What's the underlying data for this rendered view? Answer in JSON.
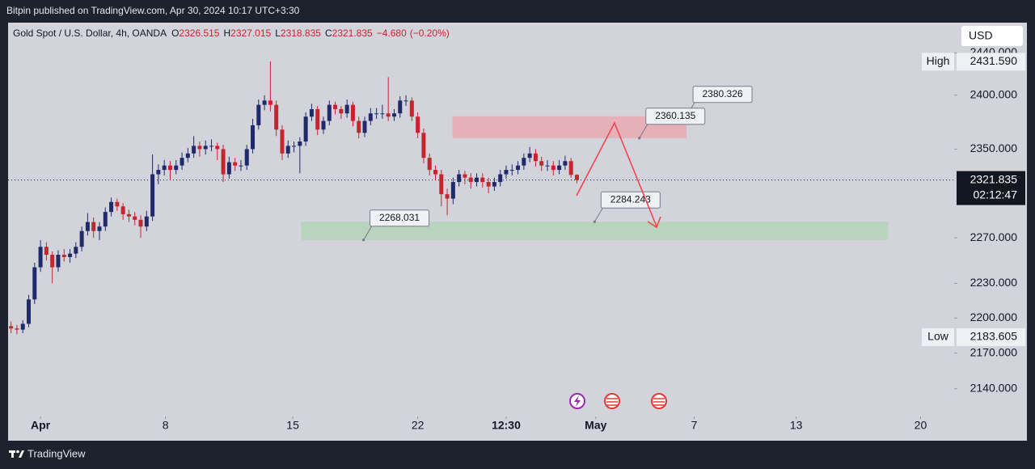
{
  "header": {
    "text": "Bitpin published on TradingView.com, Apr 30, 2024 10:17 UTC+3:30"
  },
  "footer": {
    "brand": "TradingView"
  },
  "currency_button": "USD",
  "chart_data": {
    "type": "candlestick",
    "title": "Gold Spot / U.S. Dollar, 4h, OANDA",
    "legend_ohlc": [
      {
        "label": "O",
        "value": 2326.515
      },
      {
        "label": "H",
        "value": 2327.015
      },
      {
        "label": "L",
        "value": 2318.835
      },
      {
        "label": "C",
        "value": 2321.835
      }
    ],
    "change": {
      "value": -4.68,
      "label": "−4.680"
    },
    "change_pct": {
      "value": -0.2,
      "label": "(−0.20%)"
    },
    "up_color": "#1f2a6b",
    "down_color": "#c4252f",
    "log_scale": true,
    "ylim": [
      2117,
      2469
    ],
    "yticks": [
      {
        "value": 2440,
        "label": "2440.000"
      },
      {
        "value": 2400,
        "label": "2400.000"
      },
      {
        "value": 2350,
        "label": "2350.000"
      },
      {
        "value": 2270,
        "label": "2270.000"
      },
      {
        "value": 2230,
        "label": "2230.000"
      },
      {
        "value": 2200,
        "label": "2200.000"
      },
      {
        "value": 2170,
        "label": "2170.000"
      },
      {
        "value": 2140,
        "label": "2140.000"
      }
    ],
    "xlim": [
      -0.5,
      160
    ],
    "xticks": [
      {
        "value": 5,
        "label": "Apr"
      },
      {
        "value": 26.2,
        "label": "8"
      },
      {
        "value": 47.8,
        "label": "15"
      },
      {
        "value": 69,
        "label": "22"
      },
      {
        "value": 84,
        "label": "12:30"
      },
      {
        "value": 99.2,
        "label": "May"
      },
      {
        "value": 115.9,
        "label": "7"
      },
      {
        "value": 133.2,
        "label": "13"
      },
      {
        "value": 154.3,
        "label": "20"
      }
    ],
    "x": [
      0,
      1,
      2,
      3,
      4,
      5,
      6,
      7,
      8,
      9,
      10,
      11,
      12,
      13,
      14,
      15,
      16,
      17,
      18,
      19,
      20,
      21,
      22,
      23,
      24,
      25,
      26,
      27,
      28,
      29,
      30,
      31,
      32,
      33,
      34,
      35,
      36,
      37,
      38,
      39,
      40,
      41,
      42,
      43,
      44,
      45,
      46,
      47,
      48,
      49,
      50,
      51,
      52,
      53,
      54,
      55,
      56,
      57,
      58,
      59,
      60,
      61,
      62,
      63,
      64,
      65,
      66,
      67,
      68,
      69,
      70,
      71,
      72,
      73,
      74,
      75,
      76,
      77,
      78,
      79,
      80,
      81,
      82,
      83,
      84,
      85,
      86,
      87,
      88,
      89,
      90,
      91,
      92,
      93,
      94,
      95,
      96
    ],
    "ohlc": [
      [
        2193,
        2197,
        2187,
        2191
      ],
      [
        2191,
        2194,
        2186,
        2190
      ],
      [
        2190,
        2198,
        2187,
        2195
      ],
      [
        2195,
        2220,
        2192,
        2216
      ],
      [
        2216,
        2248,
        2212,
        2244
      ],
      [
        2244,
        2268,
        2240,
        2262
      ],
      [
        2262,
        2266,
        2250,
        2255
      ],
      [
        2255,
        2258,
        2230,
        2244
      ],
      [
        2244,
        2259,
        2240,
        2255
      ],
      [
        2255,
        2260,
        2249,
        2253
      ],
      [
        2253,
        2260,
        2248,
        2256
      ],
      [
        2256,
        2266,
        2252,
        2262
      ],
      [
        2262,
        2280,
        2258,
        2276
      ],
      [
        2276,
        2292,
        2272,
        2284
      ],
      [
        2284,
        2288,
        2270,
        2276
      ],
      [
        2276,
        2284,
        2268,
        2280
      ],
      [
        2280,
        2297,
        2276,
        2293
      ],
      [
        2293,
        2306,
        2289,
        2302
      ],
      [
        2302,
        2305,
        2294,
        2298
      ],
      [
        2298,
        2301,
        2286,
        2291
      ],
      [
        2291,
        2295,
        2284,
        2289
      ],
      [
        2289,
        2293,
        2281,
        2286
      ],
      [
        2286,
        2290,
        2270,
        2280
      ],
      [
        2280,
        2294,
        2276,
        2289
      ],
      [
        2289,
        2345,
        2285,
        2327
      ],
      [
        2327,
        2336,
        2318,
        2331
      ],
      [
        2331,
        2340,
        2326,
        2335
      ],
      [
        2335,
        2339,
        2322,
        2331
      ],
      [
        2331,
        2340,
        2327,
        2335
      ],
      [
        2335,
        2347,
        2331,
        2342
      ],
      [
        2342,
        2351,
        2338,
        2346
      ],
      [
        2346,
        2362,
        2342,
        2353
      ],
      [
        2353,
        2357,
        2343,
        2350
      ],
      [
        2350,
        2358,
        2345,
        2353
      ],
      [
        2353,
        2359,
        2348,
        2353
      ],
      [
        2353,
        2356,
        2340,
        2350
      ],
      [
        2350,
        2354,
        2320,
        2327
      ],
      [
        2327,
        2343,
        2323,
        2338
      ],
      [
        2338,
        2342,
        2330,
        2335
      ],
      [
        2335,
        2340,
        2330,
        2335
      ],
      [
        2335,
        2354,
        2331,
        2350
      ],
      [
        2350,
        2378,
        2346,
        2372
      ],
      [
        2372,
        2396,
        2368,
        2391
      ],
      [
        2391,
        2400,
        2386,
        2395
      ],
      [
        2395,
        2432,
        2385,
        2391
      ],
      [
        2391,
        2395,
        2362,
        2368
      ],
      [
        2368,
        2372,
        2340,
        2346
      ],
      [
        2346,
        2358,
        2342,
        2353
      ],
      [
        2353,
        2357,
        2347,
        2353
      ],
      [
        2353,
        2361,
        2328,
        2357
      ],
      [
        2357,
        2384,
        2353,
        2380
      ],
      [
        2380,
        2392,
        2376,
        2387
      ],
      [
        2387,
        2390,
        2363,
        2368
      ],
      [
        2368,
        2380,
        2364,
        2376
      ],
      [
        2376,
        2395,
        2372,
        2391
      ],
      [
        2391,
        2394,
        2382,
        2387
      ],
      [
        2387,
        2390,
        2378,
        2383
      ],
      [
        2383,
        2396,
        2379,
        2391
      ],
      [
        2391,
        2394,
        2371,
        2376
      ],
      [
        2376,
        2380,
        2360,
        2365
      ],
      [
        2365,
        2380,
        2361,
        2376
      ],
      [
        2376,
        2388,
        2372,
        2383
      ],
      [
        2383,
        2388,
        2378,
        2383
      ],
      [
        2383,
        2391,
        2378,
        2383
      ],
      [
        2383,
        2417,
        2376,
        2380
      ],
      [
        2380,
        2387,
        2376,
        2383
      ],
      [
        2383,
        2399,
        2379,
        2395
      ],
      [
        2395,
        2400,
        2390,
        2395
      ],
      [
        2395,
        2398,
        2376,
        2380
      ],
      [
        2380,
        2384,
        2360,
        2365
      ],
      [
        2365,
        2369,
        2337,
        2342
      ],
      [
        2342,
        2346,
        2326,
        2331
      ],
      [
        2331,
        2335,
        2322,
        2327
      ],
      [
        2327,
        2331,
        2298,
        2309
      ],
      [
        2309,
        2314,
        2290,
        2305
      ],
      [
        2305,
        2324,
        2300,
        2320
      ],
      [
        2320,
        2331,
        2316,
        2327
      ],
      [
        2327,
        2330,
        2318,
        2324
      ],
      [
        2324,
        2328,
        2314,
        2320
      ],
      [
        2320,
        2328,
        2316,
        2324
      ],
      [
        2324,
        2328,
        2315,
        2320
      ],
      [
        2320,
        2324,
        2310,
        2316
      ],
      [
        2316,
        2324,
        2312,
        2320
      ],
      [
        2320,
        2331,
        2316,
        2327
      ],
      [
        2327,
        2335,
        2323,
        2331
      ],
      [
        2331,
        2336,
        2326,
        2331
      ],
      [
        2331,
        2339,
        2327,
        2335
      ],
      [
        2335,
        2346,
        2331,
        2342
      ],
      [
        2342,
        2352,
        2338,
        2346
      ],
      [
        2346,
        2350,
        2334,
        2339
      ],
      [
        2339,
        2343,
        2330,
        2335
      ],
      [
        2335,
        2340,
        2330,
        2335
      ],
      [
        2335,
        2339,
        2326,
        2331
      ],
      [
        2331,
        2340,
        2327,
        2335
      ],
      [
        2335,
        2344,
        2331,
        2339
      ],
      [
        2339,
        2342,
        2324,
        2326.515
      ],
      [
        2326.515,
        2327.015,
        2318.835,
        2321.835
      ]
    ],
    "zones": [
      {
        "top": 2380.326,
        "bottom": 2360.135,
        "x": [
          74.9,
          114.6
        ],
        "color": "#e8a9b0"
      },
      {
        "top": 2284.243,
        "bottom": 2268.031,
        "x": [
          49.2,
          148.8
        ],
        "color": "#b3d3b6"
      }
    ],
    "callouts": [
      {
        "value": 2380.326,
        "x": 114.6
      },
      {
        "value": 2360.135,
        "x": 106.6
      },
      {
        "value": 2268.031,
        "x": 59.8
      },
      {
        "value": 2284.243,
        "x": 99
      }
    ],
    "high_marker": {
      "text": "High",
      "value": 2431.59,
      "label": "2431.590"
    },
    "low_marker": {
      "text": "Low",
      "value": 2183.605,
      "label": "2183.605"
    },
    "last_price": {
      "value": 2321.835,
      "countdown": "02:12:47"
    }
  }
}
